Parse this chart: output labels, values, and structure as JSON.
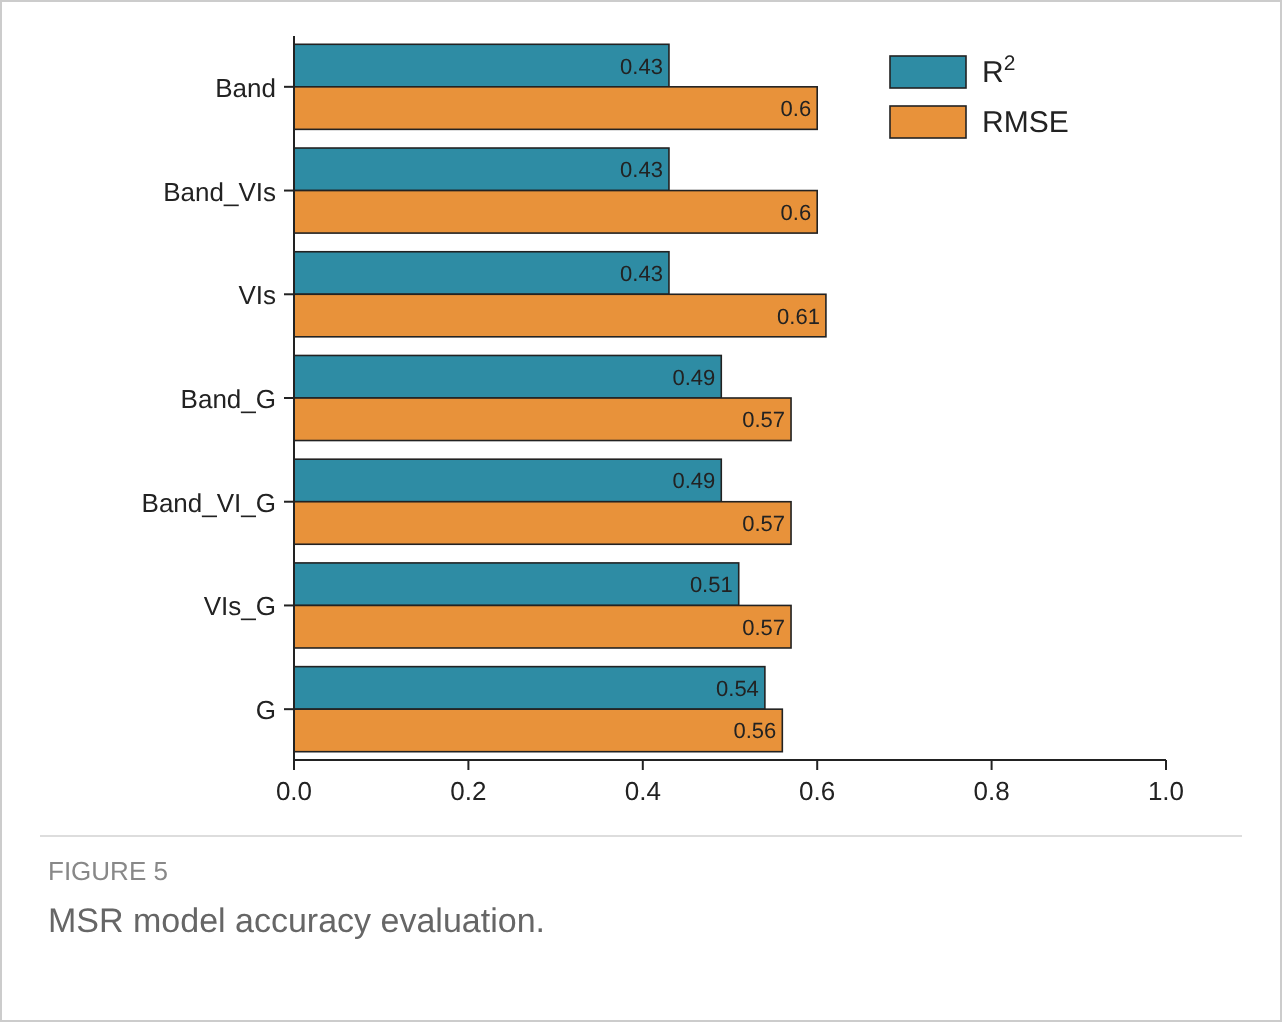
{
  "chart_data": {
    "type": "bar",
    "orientation": "horizontal",
    "title": "FIGURE 5",
    "subtitle": "MSR model accuracy evaluation.",
    "categories": [
      "Band",
      "Band_VIs",
      "VIs",
      "Band_G",
      "Band_VI_G",
      "VIs_G",
      "G"
    ],
    "series": [
      {
        "name": "R$^{2}$",
        "color": "#2e8ca4",
        "values": [
          0.43,
          0.43,
          0.43,
          0.49,
          0.49,
          0.51,
          0.54
        ]
      },
      {
        "name": "RMSE",
        "color": "#e8923a",
        "values": [
          0.6,
          0.6,
          0.61,
          0.57,
          0.57,
          0.57,
          0.56
        ]
      }
    ],
    "xlim": [
      0,
      1
    ],
    "xticks": [
      {
        "value": 0,
        "label": "0.0"
      },
      0.2,
      0.4,
      0.6,
      0.8,
      {
        "value": 1,
        "label": "1.0"
      }
    ],
    "data_labels": true,
    "legend": "top right",
    "grid": false
  }
}
